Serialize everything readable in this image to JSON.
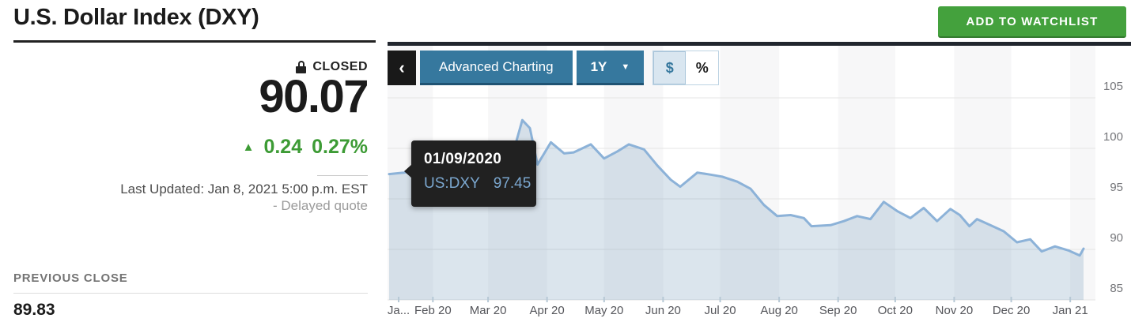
{
  "header": {
    "title": "U.S. Dollar Index (DXY)",
    "watchlist_button": "ADD TO WATCHLIST"
  },
  "quote": {
    "status": "CLOSED",
    "price": "90.07",
    "change": "0.24",
    "change_percent": "0.27%",
    "last_updated": "Last Updated: Jan 8, 2021 5:00 p.m. EST",
    "delayed_note": "- Delayed quote",
    "previous_close_label": "PREVIOUS CLOSE",
    "previous_close_value": "89.83"
  },
  "toolbar": {
    "advanced_charting": "Advanced Charting",
    "range": "1Y",
    "dollar_toggle": "$",
    "percent_toggle": "%"
  },
  "tooltip": {
    "date": "01/09/2020",
    "symbol": "US:DXY",
    "value": "97.45"
  },
  "icons": {
    "chevron_left": "‹",
    "dropdown_arrow": "▼",
    "up_arrow": "▲"
  },
  "colors": {
    "accent_blue": "#36789e",
    "button_green": "#44a13d",
    "change_green": "#3d9b35",
    "line_blue": "#8cb2d8",
    "area_fill": "rgba(125,160,190,0.28)",
    "gridline": "#e4e4e4",
    "stripe_gray": "#f7f7f8",
    "tick_mark": "#b6c8d5",
    "axis_text": "#75767a",
    "tooltip_bg": "#212121",
    "tooltip_blue": "#7ba7cf",
    "topbar_dark": "#21262e"
  },
  "chart_data": {
    "type": "area",
    "title": "U.S. Dollar Index (DXY) 1Y chart",
    "x_range": [
      "01/09/2020",
      "01/08/2021"
    ],
    "ylim": [
      85,
      105
    ],
    "y_ticks": [
      105,
      100,
      95,
      90,
      85
    ],
    "grid": "horizontal",
    "background": "alternating-month-stripes",
    "legend": "none",
    "x_ticks": [
      {
        "label": "Ja...",
        "date": "01/14/2020"
      },
      {
        "label": "Feb 20",
        "date": "02/01/2020"
      },
      {
        "label": "Mar 20",
        "date": "03/01/2020"
      },
      {
        "label": "Apr 20",
        "date": "04/01/2020"
      },
      {
        "label": "May 20",
        "date": "05/01/2020"
      },
      {
        "label": "Jun 20",
        "date": "06/01/2020"
      },
      {
        "label": "Jul 20",
        "date": "07/01/2020"
      },
      {
        "label": "Aug 20",
        "date": "08/01/2020"
      },
      {
        "label": "Sep 20",
        "date": "09/01/2020"
      },
      {
        "label": "Oct 20",
        "date": "10/01/2020"
      },
      {
        "label": "Nov 20",
        "date": "11/01/2020"
      },
      {
        "label": "Dec 20",
        "date": "12/01/2020"
      },
      {
        "label": "Jan 21",
        "date": "01/01/2021"
      }
    ],
    "series": [
      {
        "name": "US:DXY",
        "dates": [
          "01/09/2020",
          "01/17/2020",
          "01/24/2020",
          "01/31/2020",
          "02/07/2020",
          "02/14/2020",
          "02/20/2020",
          "02/28/2020",
          "03/04/2020",
          "03/09/2020",
          "03/13/2020",
          "03/19/2020",
          "03/23/2020",
          "03/27/2020",
          "04/03/2020",
          "04/10/2020",
          "04/15/2020",
          "04/24/2020",
          "05/01/2020",
          "05/08/2020",
          "05/14/2020",
          "05/22/2020",
          "05/29/2020",
          "06/05/2020",
          "06/10/2020",
          "06/19/2020",
          "06/26/2020",
          "07/02/2020",
          "07/10/2020",
          "07/17/2020",
          "07/24/2020",
          "07/31/2020",
          "08/07/2020",
          "08/14/2020",
          "08/18/2020",
          "08/28/2020",
          "09/04/2020",
          "09/11/2020",
          "09/18/2020",
          "09/25/2020",
          "10/02/2020",
          "10/09/2020",
          "10/16/2020",
          "10/23/2020",
          "10/30/2020",
          "11/04/2020",
          "11/09/2020",
          "11/13/2020",
          "11/20/2020",
          "11/27/2020",
          "12/04/2020",
          "12/11/2020",
          "12/17/2020",
          "12/24/2020",
          "12/31/2020",
          "01/06/2021",
          "01/08/2021"
        ],
        "values": [
          97.45,
          97.6,
          97.9,
          97.4,
          98.7,
          99.1,
          99.8,
          98.1,
          97.3,
          95.0,
          98.8,
          102.8,
          102.0,
          98.4,
          100.6,
          99.5,
          99.6,
          100.4,
          99.0,
          99.7,
          100.4,
          99.9,
          98.3,
          96.9,
          96.2,
          97.6,
          97.4,
          97.2,
          96.7,
          96.0,
          94.4,
          93.3,
          93.4,
          93.1,
          92.3,
          92.4,
          92.8,
          93.3,
          93.0,
          94.7,
          93.8,
          93.1,
          94.1,
          92.8,
          94.0,
          93.4,
          92.3,
          93.0,
          92.4,
          91.8,
          90.7,
          91.0,
          89.8,
          90.3,
          89.9,
          89.4,
          90.07
        ]
      }
    ]
  }
}
